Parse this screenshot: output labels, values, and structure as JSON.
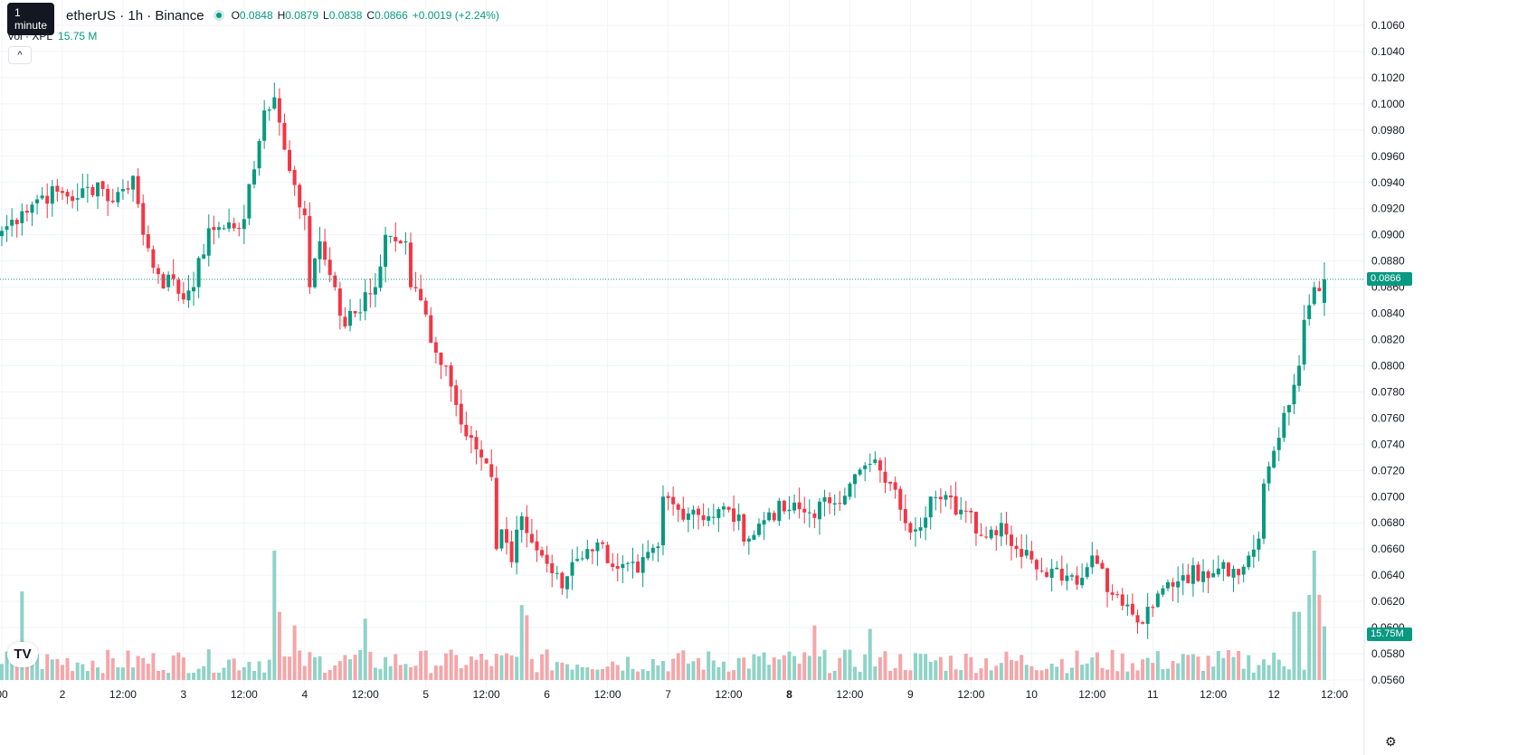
{
  "legend": {
    "symbol": "etherUS · 1h · Binance",
    "tooltip": "1 minute",
    "open_label": "O",
    "open": "0.0848",
    "high_label": "H",
    "high": "0.0879",
    "low_label": "L",
    "low": "0.0838",
    "close_label": "C",
    "close": "0.0866",
    "change": "+0.0019 (+2.24%)",
    "vol_label": "Vol · XPL",
    "vol_value": "15.75 M",
    "collapse_glyph": "^"
  },
  "icons": {
    "logo": "tradingview-logo-icon",
    "settings": "gear-icon",
    "live": "live-dot-icon"
  },
  "colors": {
    "up": "#089981",
    "down": "#f23645",
    "vol_up": "#8fd3c7",
    "vol_down": "#f5a6a9",
    "grid": "#f0f3fa"
  },
  "chart_data": {
    "type": "candlestick",
    "interval": "1h",
    "y_axis": {
      "min": 0.0556,
      "max": 0.1068,
      "ticks": [
        "0.1060",
        "0.1040",
        "0.1020",
        "0.1000",
        "0.0980",
        "0.0960",
        "0.0940",
        "0.0920",
        "0.0900",
        "0.0880",
        "0.0860",
        "0.0840",
        "0.0820",
        "0.0800",
        "0.0780",
        "0.0760",
        "0.0740",
        "0.0720",
        "0.0700",
        "0.0680",
        "0.0660",
        "0.0640",
        "0.0620",
        "0.0600",
        "0.0580",
        "0.0560"
      ],
      "last_price_label": "0.0866",
      "last_price": 0.0866,
      "volume_label": "15.75M"
    },
    "x_axis": {
      "labels": [
        {
          "text": "00",
          "bar": 0,
          "bold": false
        },
        {
          "text": "2",
          "bar": 12,
          "bold": false
        },
        {
          "text": "12:00",
          "bar": 24,
          "bold": false
        },
        {
          "text": "3",
          "bar": 36,
          "bold": false
        },
        {
          "text": "12:00",
          "bar": 48,
          "bold": false
        },
        {
          "text": "4",
          "bar": 60,
          "bold": false
        },
        {
          "text": "12:00",
          "bar": 72,
          "bold": false
        },
        {
          "text": "5",
          "bar": 84,
          "bold": false
        },
        {
          "text": "12:00",
          "bar": 96,
          "bold": false
        },
        {
          "text": "6",
          "bar": 108,
          "bold": false
        },
        {
          "text": "12:00",
          "bar": 120,
          "bold": false
        },
        {
          "text": "7",
          "bar": 132,
          "bold": false
        },
        {
          "text": "12:00",
          "bar": 144,
          "bold": false
        },
        {
          "text": "8",
          "bar": 156,
          "bold": true
        },
        {
          "text": "12:00",
          "bar": 168,
          "bold": false
        },
        {
          "text": "9",
          "bar": 180,
          "bold": false
        },
        {
          "text": "12:00",
          "bar": 192,
          "bold": false
        },
        {
          "text": "10",
          "bar": 204,
          "bold": false
        },
        {
          "text": "12:00",
          "bar": 216,
          "bold": false
        },
        {
          "text": "11",
          "bar": 228,
          "bold": false
        },
        {
          "text": "12:00",
          "bar": 240,
          "bold": false
        },
        {
          "text": "12",
          "bar": 252,
          "bold": false
        },
        {
          "text": "12:00",
          "bar": 264,
          "bold": false
        }
      ]
    },
    "anchors": [
      [
        0,
        0.0903
      ],
      [
        4,
        0.0918
      ],
      [
        8,
        0.093
      ],
      [
        12,
        0.0932
      ],
      [
        15,
        0.0928
      ],
      [
        19,
        0.094
      ],
      [
        22,
        0.0925
      ],
      [
        24,
        0.0935
      ],
      [
        26,
        0.0945
      ],
      [
        28,
        0.09
      ],
      [
        31,
        0.087
      ],
      [
        35,
        0.0855
      ],
      [
        38,
        0.086
      ],
      [
        41,
        0.0905
      ],
      [
        44,
        0.0905
      ],
      [
        48,
        0.0912
      ],
      [
        50,
        0.095
      ],
      [
        52,
        0.0995
      ],
      [
        54,
        0.1005
      ],
      [
        56,
        0.0965
      ],
      [
        58,
        0.0938
      ],
      [
        60,
        0.0915
      ],
      [
        61,
        0.086
      ],
      [
        63,
        0.0895
      ],
      [
        66,
        0.086
      ],
      [
        68,
        0.083
      ],
      [
        70,
        0.084
      ],
      [
        74,
        0.086
      ],
      [
        76,
        0.09
      ],
      [
        78,
        0.0895
      ],
      [
        80,
        0.0895
      ],
      [
        81,
        0.086
      ],
      [
        83,
        0.085
      ],
      [
        86,
        0.081
      ],
      [
        88,
        0.08
      ],
      [
        90,
        0.077
      ],
      [
        93,
        0.0745
      ],
      [
        95,
        0.073
      ],
      [
        97,
        0.0715
      ],
      [
        98,
        0.066
      ],
      [
        99,
        0.0675
      ],
      [
        101,
        0.065
      ],
      [
        103,
        0.0685
      ],
      [
        105,
        0.0665
      ],
      [
        107,
        0.0655
      ],
      [
        111,
        0.063
      ],
      [
        113,
        0.065
      ],
      [
        116,
        0.066
      ],
      [
        118,
        0.0665
      ],
      [
        122,
        0.0645
      ],
      [
        126,
        0.0642
      ],
      [
        130,
        0.0662
      ],
      [
        131,
        0.07
      ],
      [
        134,
        0.069
      ],
      [
        137,
        0.069
      ],
      [
        140,
        0.0685
      ],
      [
        144,
        0.069
      ],
      [
        148,
        0.0668
      ],
      [
        152,
        0.0688
      ],
      [
        156,
        0.069
      ],
      [
        160,
        0.0688
      ],
      [
        164,
        0.0695
      ],
      [
        168,
        0.071
      ],
      [
        172,
        0.0725
      ],
      [
        174,
        0.072
      ],
      [
        176,
        0.071
      ],
      [
        178,
        0.069
      ],
      [
        181,
        0.0675
      ],
      [
        184,
        0.07
      ],
      [
        186,
        0.0698
      ],
      [
        190,
        0.069
      ],
      [
        192,
        0.0688
      ],
      [
        194,
        0.067
      ],
      [
        198,
        0.068
      ],
      [
        201,
        0.066
      ],
      [
        204,
        0.0652
      ],
      [
        208,
        0.0645
      ],
      [
        212,
        0.064
      ],
      [
        214,
        0.0638
      ],
      [
        216,
        0.0655
      ],
      [
        218,
        0.0645
      ],
      [
        220,
        0.0625
      ],
      [
        224,
        0.061
      ],
      [
        226,
        0.0603
      ],
      [
        228,
        0.0615
      ],
      [
        230,
        0.063
      ],
      [
        234,
        0.064
      ],
      [
        238,
        0.0643
      ],
      [
        242,
        0.065
      ],
      [
        245,
        0.064
      ],
      [
        247,
        0.0655
      ],
      [
        249,
        0.0668
      ],
      [
        250,
        0.071
      ],
      [
        252,
        0.0735
      ],
      [
        253,
        0.0745
      ],
      [
        255,
        0.077
      ],
      [
        257,
        0.08
      ],
      [
        258,
        0.0835
      ],
      [
        260,
        0.086
      ],
      [
        262,
        0.0866
      ]
    ],
    "volume_max_m": 38.5,
    "volume_spikes": [
      [
        4,
        26
      ],
      [
        54,
        38
      ],
      [
        55,
        20
      ],
      [
        58,
        16
      ],
      [
        72,
        18
      ],
      [
        103,
        22
      ],
      [
        104,
        19
      ],
      [
        161,
        16
      ],
      [
        172,
        15
      ],
      [
        256,
        20
      ],
      [
        257,
        20
      ],
      [
        259,
        25
      ],
      [
        260,
        38
      ],
      [
        261,
        25
      ],
      [
        262,
        16
      ]
    ],
    "last_volume_m": 15.75
  }
}
